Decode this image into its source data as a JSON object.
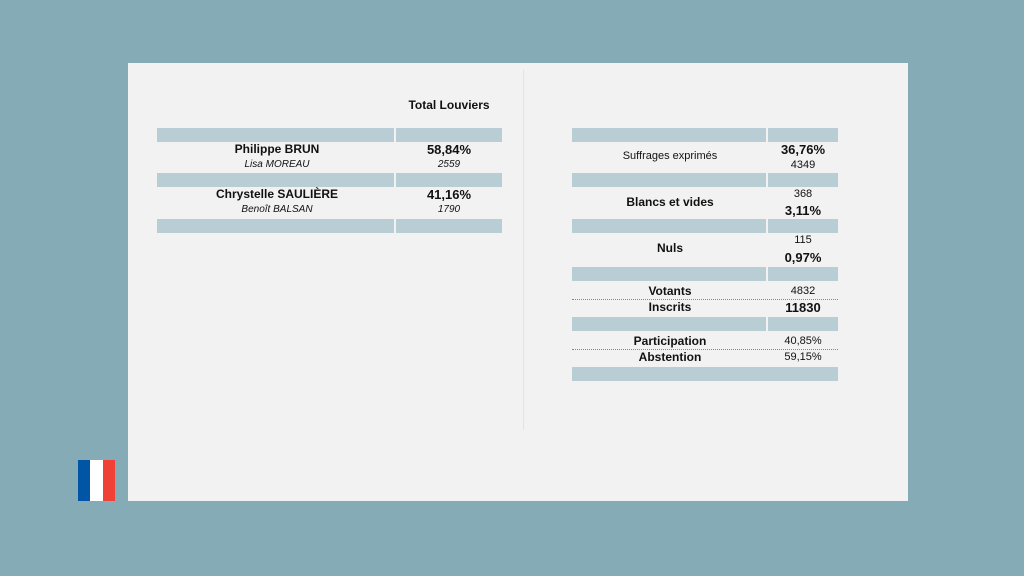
{
  "header": {
    "title": "Total Louviers"
  },
  "candidates": [
    {
      "name": "Philippe BRUN",
      "substitute": "Lisa MOREAU",
      "percent": "58,84%",
      "votes": "2559"
    },
    {
      "name": "Chrystelle SAULIÈRE",
      "substitute": "Benoît BALSAN",
      "percent": "41,16%",
      "votes": "1790"
    }
  ],
  "stats": {
    "suffrages": {
      "label": "Suffrages exprimés",
      "percent": "36,76%",
      "count": "4349"
    },
    "blancs": {
      "label": "Blancs et vides",
      "count": "368",
      "percent": "3,11%"
    },
    "nuls": {
      "label": "Nuls",
      "count": "115",
      "percent": "0,97%"
    },
    "votants": {
      "label": "Votants",
      "value": "4832"
    },
    "inscrits": {
      "label": "Inscrits",
      "value": "11830"
    },
    "participation": {
      "label": "Participation",
      "value": "40,85%"
    },
    "abstention": {
      "label": "Abstention",
      "value": "59,15%"
    }
  },
  "flag": {
    "colors": [
      "#0055a4",
      "#ffffff",
      "#ef4135"
    ]
  }
}
